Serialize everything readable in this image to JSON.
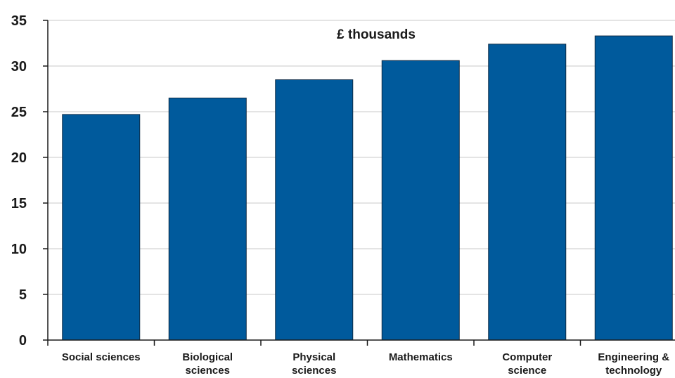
{
  "chart_data": {
    "type": "bar",
    "unit_label": "£ thousands",
    "categories": [
      [
        "Social sciences"
      ],
      [
        "Biological",
        "sciences"
      ],
      [
        "Physical",
        "sciences"
      ],
      [
        "Mathematics"
      ],
      [
        "Computer",
        "science"
      ],
      [
        "Engineering &",
        "technology"
      ]
    ],
    "values": [
      24.7,
      26.5,
      28.5,
      30.6,
      32.4,
      33.3
    ],
    "ylim": [
      0,
      35
    ],
    "yticks": [
      "0",
      "5",
      "10",
      "15",
      "20",
      "25",
      "30",
      "35"
    ],
    "grid": true,
    "bar_color": "#005a9c",
    "bar_edge_color": "#0d2a45",
    "grid_color": "#c8c8c8"
  }
}
